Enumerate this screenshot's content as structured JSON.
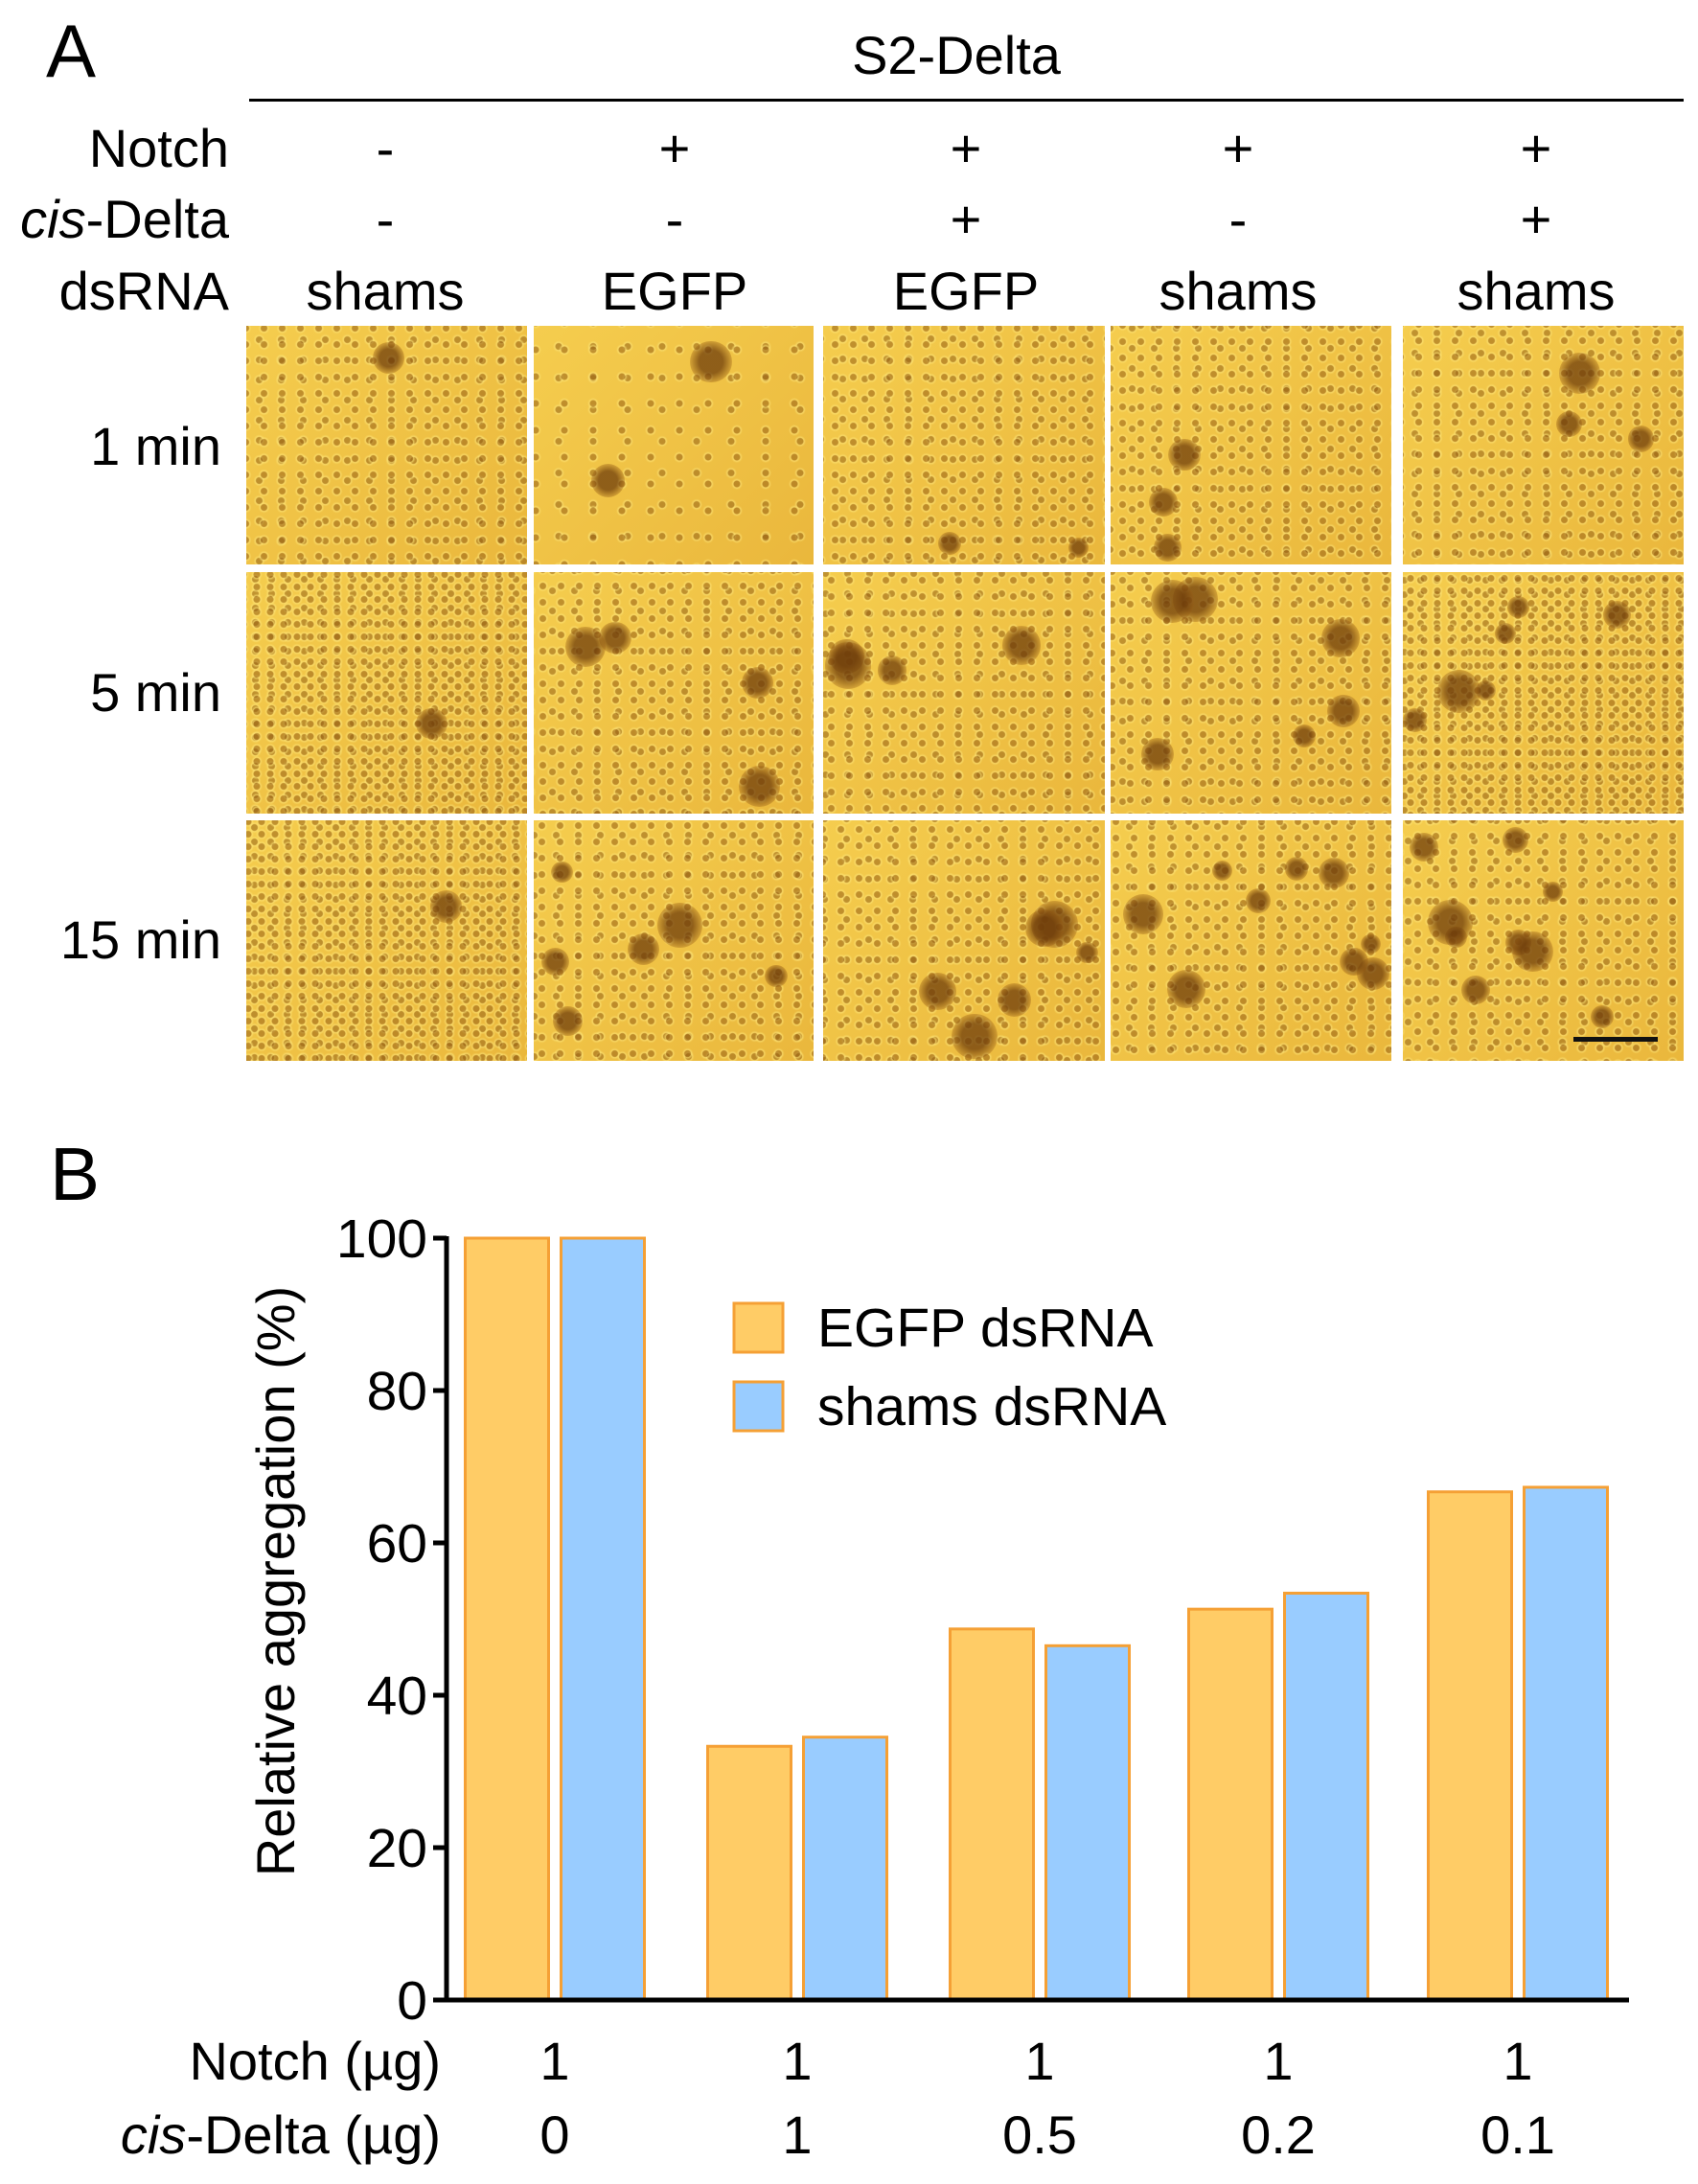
{
  "panel_a": {
    "label": "A",
    "title": "S2-Delta",
    "row_labels": {
      "notch": "Notch",
      "cis_delta_italic": "cis",
      "cis_delta_rest": "-Delta",
      "dsrna": "dsRNA"
    },
    "columns": [
      {
        "notch": "-",
        "cis_delta": "-",
        "dsrna": "shams"
      },
      {
        "notch": "+",
        "cis_delta": "-",
        "dsrna": "EGFP"
      },
      {
        "notch": "+",
        "cis_delta": "+",
        "dsrna": "EGFP"
      },
      {
        "notch": "+",
        "cis_delta": "-",
        "dsrna": "shams"
      },
      {
        "notch": "+",
        "cis_delta": "+",
        "dsrna": "shams"
      }
    ],
    "time_points": [
      "1 min",
      "5 min",
      "15 min"
    ]
  },
  "panel_b": {
    "label": "B"
  },
  "chart_data": {
    "type": "bar",
    "ylabel": "Relative aggregation (%)",
    "ylim": [
      0,
      100
    ],
    "yticks": [
      "0",
      "20",
      "40",
      "60",
      "80",
      "100"
    ],
    "categories": [
      "1/0",
      "1/1",
      "1/0.5",
      "1/0.2",
      "1/0.1"
    ],
    "x_rows": [
      {
        "label": "Notch (µg)",
        "label_italic": "",
        "values": [
          "1",
          "1",
          "1",
          "1",
          "1"
        ]
      },
      {
        "label": "-Delta (µg)",
        "label_italic": "cis",
        "values": [
          "0",
          "1",
          "0.5",
          "0.2",
          "0.1"
        ]
      }
    ],
    "series": [
      {
        "name": "EGFP dsRNA",
        "values": [
          100,
          33.3,
          48.7,
          51.3,
          66.7
        ],
        "color": "#FFCC66"
      },
      {
        "name": "shams dsRNA",
        "values": [
          100,
          34.5,
          46.5,
          53.4,
          67.3
        ],
        "color": "#99CCFF"
      }
    ],
    "bar_stroke": "#F5A035",
    "legend": "top-center",
    "grid": false
  }
}
